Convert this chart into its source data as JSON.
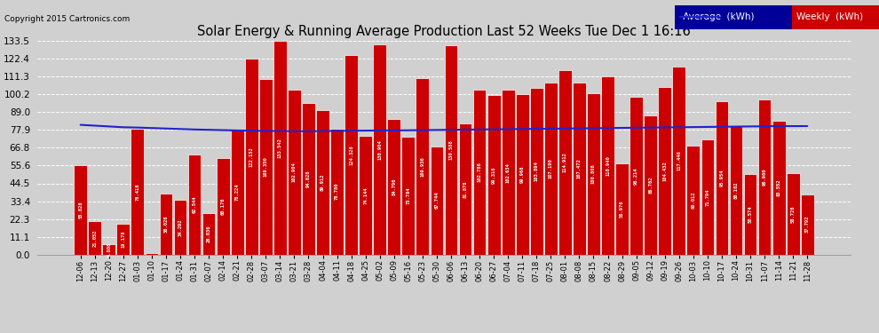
{
  "title": "Solar Energy & Running Average Production Last 52 Weeks Tue Dec 1 16:16",
  "copyright": "Copyright 2015 Cartronics.com",
  "bar_color": "#cc0000",
  "line_color": "#2222cc",
  "bg_color": "#d0d0d0",
  "ytick_values": [
    0.0,
    11.1,
    22.3,
    33.4,
    44.5,
    55.6,
    66.8,
    77.9,
    89.0,
    100.2,
    111.3,
    122.4,
    133.5
  ],
  "categories": [
    "12-06",
    "12-13",
    "12-20",
    "12-27",
    "01-03",
    "01-10",
    "01-17",
    "01-24",
    "01-31",
    "02-07",
    "02-14",
    "02-21",
    "02-28",
    "03-07",
    "03-14",
    "03-21",
    "03-28",
    "04-04",
    "04-11",
    "04-18",
    "04-25",
    "05-02",
    "05-09",
    "05-16",
    "05-23",
    "05-30",
    "06-06",
    "06-13",
    "06-20",
    "06-27",
    "07-04",
    "07-11",
    "07-18",
    "07-25",
    "08-01",
    "08-08",
    "08-15",
    "08-22",
    "08-29",
    "09-05",
    "09-12",
    "09-19",
    "09-26",
    "10-03",
    "10-10",
    "10-17",
    "10-24",
    "10-31",
    "11-07",
    "11-14",
    "11-21",
    "11-28"
  ],
  "weekly_values": [
    55.828,
    21.052,
    6.808,
    19.178,
    78.418,
    1.03,
    38.026,
    34.292,
    62.544,
    26.036,
    60.176,
    78.224,
    122.152,
    109.35,
    133.542,
    102.904,
    94.628,
    89.912,
    78.78,
    124.328,
    74.144,
    130.904,
    84.796,
    73.784,
    109.936,
    67.744,
    130.588,
    81.878,
    102.786,
    99.318,
    102.634,
    99.968,
    103.894,
    107.19,
    114.912,
    107.472,
    100.808,
    110.94,
    56.976,
    98.214,
    86.762,
    104.432,
    117.448,
    68.012,
    71.794,
    95.954,
    80.102,
    50.574,
    96.9,
    83.552,
    50.728,
    37.792
  ],
  "avg_values": [
    81.0,
    80.5,
    80.0,
    79.5,
    79.3,
    79.0,
    78.7,
    78.4,
    78.1,
    77.9,
    77.7,
    77.5,
    77.3,
    77.2,
    77.1,
    77.0,
    77.0,
    77.1,
    77.2,
    77.3,
    77.4,
    77.5,
    77.5,
    77.6,
    77.7,
    77.8,
    77.9,
    78.0,
    78.1,
    78.2,
    78.3,
    78.4,
    78.5,
    78.6,
    78.7,
    78.8,
    78.9,
    79.0,
    79.1,
    79.2,
    79.3,
    79.4,
    79.5,
    79.6,
    79.7,
    79.8,
    79.9,
    80.0,
    80.1,
    80.2,
    80.2,
    80.2
  ],
  "legend_blue_bg": "#000099",
  "legend_red_bg": "#cc0000",
  "ylim": [
    0,
    133.5
  ]
}
